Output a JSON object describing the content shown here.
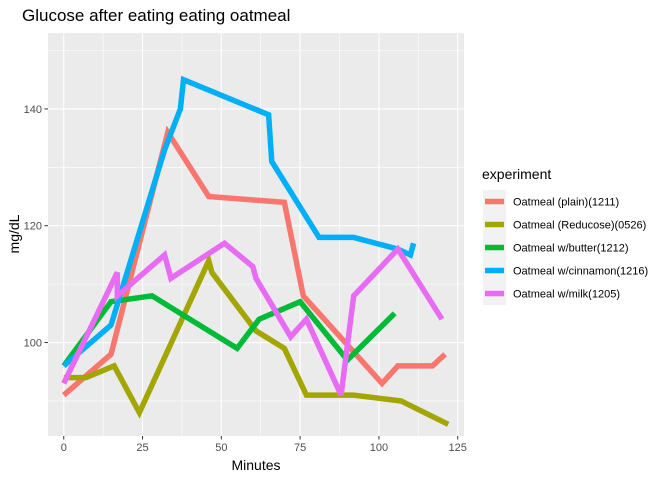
{
  "chart_data": {
    "type": "line",
    "title": "Glucose after eating eating oatmeal",
    "xlabel": "Minutes",
    "ylabel": "mg/dL",
    "xlim": [
      -5,
      127
    ],
    "ylim": [
      84,
      153
    ],
    "x_ticks": [
      0,
      25,
      50,
      75,
      100,
      125
    ],
    "y_ticks": [
      100,
      120,
      140
    ],
    "grid": true,
    "legend": {
      "title": "experiment",
      "position": "right"
    },
    "series": [
      {
        "name": "Oatmeal (plain)(1211)",
        "color": "#F8766D",
        "points": [
          [
            0,
            91
          ],
          [
            15,
            98
          ],
          [
            33,
            136
          ],
          [
            46,
            125
          ],
          [
            70,
            124
          ],
          [
            76,
            108
          ],
          [
            101,
            93
          ],
          [
            106,
            96
          ],
          [
            117,
            96
          ],
          [
            121,
            98
          ]
        ]
      },
      {
        "name": "Oatmeal (Reducose)(0526)",
        "color": "#A3A500",
        "points": [
          [
            0,
            94
          ],
          [
            7,
            94
          ],
          [
            16,
            96
          ],
          [
            24,
            88
          ],
          [
            46,
            114
          ],
          [
            47,
            112
          ],
          [
            61,
            102
          ],
          [
            70,
            99
          ],
          [
            77,
            91
          ],
          [
            92,
            91
          ],
          [
            107,
            90
          ],
          [
            122,
            86
          ]
        ]
      },
      {
        "name": "Oatmeal w/butter(1212)",
        "color": "#00BA38",
        "points": [
          [
            0,
            96
          ],
          [
            15,
            107
          ],
          [
            28,
            108
          ],
          [
            55,
            99
          ],
          [
            62,
            104
          ],
          [
            75,
            107
          ],
          [
            90,
            97
          ],
          [
            105,
            105
          ]
        ]
      },
      {
        "name": "Oatmeal w/cinnamon(1216)",
        "color": "#00B0F6",
        "points": [
          [
            0,
            96
          ],
          [
            15,
            103
          ],
          [
            32,
            133
          ],
          [
            37,
            140
          ],
          [
            38,
            145
          ],
          [
            65,
            139
          ],
          [
            66,
            131
          ],
          [
            81,
            118
          ],
          [
            92,
            118
          ],
          [
            106,
            116
          ],
          [
            110,
            115
          ],
          [
            111,
            117
          ]
        ]
      },
      {
        "name": "Oatmeal w/milk(1205)",
        "color": "#E76BF3",
        "points": [
          [
            0,
            93
          ],
          [
            17,
            112
          ],
          [
            17,
            108
          ],
          [
            32,
            115
          ],
          [
            34,
            111
          ],
          [
            51,
            117
          ],
          [
            60,
            113
          ],
          [
            61,
            111
          ],
          [
            72,
            101
          ],
          [
            77,
            104
          ],
          [
            88,
            91
          ],
          [
            92,
            108
          ],
          [
            106,
            116
          ],
          [
            120,
            104
          ]
        ]
      }
    ]
  }
}
